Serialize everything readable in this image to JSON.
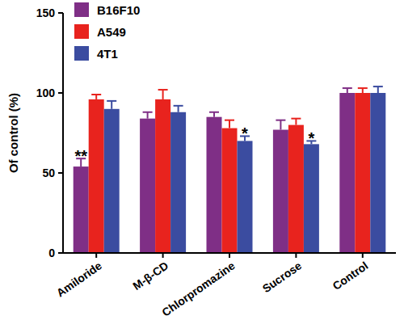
{
  "chart_data": {
    "type": "bar",
    "y_label": "Of control (%)",
    "categories": [
      "Amiloride",
      "M-β-CD",
      "Chlorpromazine",
      "Sucrose",
      "Control"
    ],
    "series": [
      {
        "name": "B16F10",
        "color": "#7f2f86",
        "values": [
          54,
          84,
          85,
          77,
          100
        ],
        "errors": [
          5,
          4,
          3,
          6,
          3
        ]
      },
      {
        "name": "A549",
        "color": "#e8231e",
        "values": [
          96,
          96,
          78,
          80,
          100
        ],
        "errors": [
          3,
          6,
          5,
          4,
          3
        ]
      },
      {
        "name": "4T1",
        "color": "#3b4ca0",
        "values": [
          90,
          88,
          70,
          68,
          100
        ],
        "errors": [
          5,
          4,
          3,
          2,
          4
        ]
      }
    ],
    "annotations": [
      {
        "text": "**",
        "category": "Amiloride",
        "series": "B16F10"
      },
      {
        "text": "*",
        "category": "Chlorpromazine",
        "series": "4T1"
      },
      {
        "text": "*",
        "category": "Sucrose",
        "series": "4T1"
      }
    ],
    "ylim": [
      0,
      150
    ],
    "yticks": [
      0,
      50,
      100,
      150
    ],
    "legend": "upper left",
    "grid": false
  }
}
